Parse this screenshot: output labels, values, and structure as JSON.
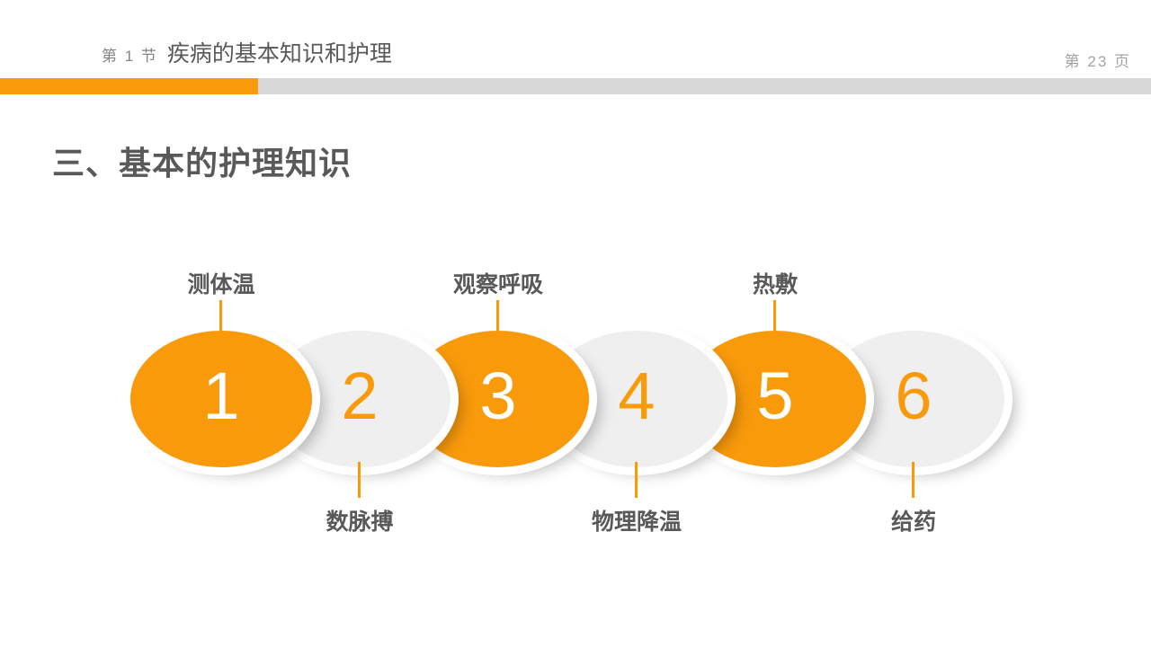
{
  "slide": {
    "header": {
      "section_label": "第 1 节",
      "section_title": "疾病的基本知识和护理",
      "page_number": "第 23 页"
    },
    "title": "三、基本的护理知识",
    "diagram": {
      "type": "numbered-process-steps",
      "steps": [
        {
          "number": "1",
          "label": "测体温",
          "label_position": "top",
          "color": "orange"
        },
        {
          "number": "2",
          "label": "数脉搏",
          "label_position": "bottom",
          "color": "gray"
        },
        {
          "number": "3",
          "label": "观察呼吸",
          "label_position": "top",
          "color": "orange"
        },
        {
          "number": "4",
          "label": "物理降温",
          "label_position": "bottom",
          "color": "gray"
        },
        {
          "number": "5",
          "label": "热敷",
          "label_position": "top",
          "color": "orange"
        },
        {
          "number": "6",
          "label": "给药",
          "label_position": "bottom",
          "color": "gray"
        }
      ]
    },
    "colors": {
      "accent_orange": "#F99A0B",
      "ellipse_gray": "#EFEFEF",
      "bar_gray": "#D8D8D8",
      "text_dark": "#595959",
      "text_muted": "#A3A3A3"
    }
  }
}
